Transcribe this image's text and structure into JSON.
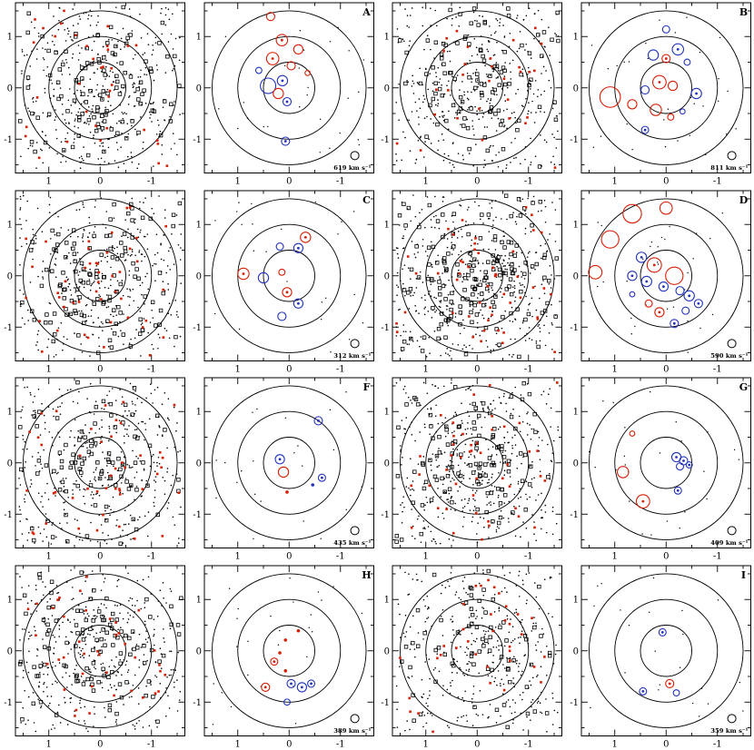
{
  "figure": {
    "description": "4x4 grid of galaxy cluster sky maps: dense photometric scatter panels paired with velocity-circle panels labeled A-I",
    "background": "#ffffff",
    "colors": {
      "red": "#d81e05",
      "blue": "#2233bb",
      "black": "#000000"
    }
  },
  "chart_data": {
    "type": "scatter",
    "grid": {
      "rows": 4,
      "cols": 4
    },
    "axis": {
      "range": 1.65,
      "x_reversed": true,
      "major_ticks": [
        1,
        0,
        -1
      ],
      "minor_ticks": [
        1.5,
        0.5,
        -0.5,
        -1.5
      ],
      "tick_labels": [
        "1",
        "0",
        "-1"
      ],
      "circle_radii": [
        0.5,
        1.0,
        1.5
      ]
    },
    "panels": [
      {
        "kind": "field",
        "seed": 101,
        "n_dots": 400,
        "n_squares": 110,
        "n_red": 35
      },
      {
        "kind": "velocity",
        "label": "A",
        "scale_label": "619 km s⁻¹",
        "seed": 201,
        "n_dots": 26,
        "markers": [
          [
            0.36,
            1.39,
            0.08,
            "R",
            0
          ],
          [
            0.14,
            0.93,
            0.11,
            "R",
            1
          ],
          [
            -0.18,
            0.75,
            0.09,
            "R",
            0
          ],
          [
            0.32,
            0.57,
            0.12,
            "R",
            1
          ],
          [
            -0.04,
            0.43,
            0.08,
            "R",
            0
          ],
          [
            0.59,
            0.34,
            0.06,
            "B",
            0
          ],
          [
            0.41,
            0.04,
            0.15,
            "B",
            0
          ],
          [
            0.13,
            0.14,
            0.1,
            "B",
            1
          ],
          [
            0.21,
            -0.11,
            0.1,
            "R",
            0
          ],
          [
            0.04,
            -0.27,
            0.08,
            "B",
            1
          ],
          [
            -0.36,
            0.29,
            0.05,
            "R",
            0
          ],
          [
            0.07,
            -1.04,
            0.08,
            "B",
            1
          ]
        ]
      },
      {
        "kind": "field",
        "seed": 102,
        "n_dots": 380,
        "n_squares": 100,
        "n_red": 30
      },
      {
        "kind": "velocity",
        "label": "B",
        "scale_label": "811 km s⁻¹",
        "seed": 202,
        "n_dots": 30,
        "markers": [
          [
            0.0,
            1.14,
            0.07,
            "B",
            0
          ],
          [
            -0.23,
            0.75,
            0.11,
            "B",
            1
          ],
          [
            0.25,
            0.64,
            0.1,
            "B",
            0
          ],
          [
            0.0,
            0.57,
            0.08,
            "R",
            1
          ],
          [
            -0.41,
            0.5,
            0.06,
            "B",
            0
          ],
          [
            0.13,
            0.11,
            0.13,
            "R",
            1
          ],
          [
            -0.13,
            0.04,
            0.09,
            "R",
            0
          ],
          [
            0.41,
            -0.04,
            0.08,
            "B",
            0
          ],
          [
            1.09,
            -0.18,
            0.2,
            "R",
            0
          ],
          [
            0.66,
            -0.32,
            0.09,
            "R",
            0
          ],
          [
            -0.59,
            -0.11,
            0.1,
            "B",
            1
          ],
          [
            0.2,
            -0.43,
            0.11,
            "R",
            0
          ],
          [
            -0.09,
            -0.57,
            0.06,
            "R",
            0
          ],
          [
            -0.32,
            -0.46,
            0.05,
            "B",
            0
          ],
          [
            0.41,
            -0.82,
            0.07,
            "B",
            1
          ]
        ]
      },
      {
        "kind": "field",
        "seed": 103,
        "n_dots": 350,
        "n_squares": 120,
        "n_red": 45
      },
      {
        "kind": "velocity",
        "label": "C",
        "scale_label": "312 km s⁻¹",
        "seed": 203,
        "n_dots": 24,
        "markers": [
          [
            -0.32,
            0.75,
            0.1,
            "R",
            1
          ],
          [
            -0.18,
            0.54,
            0.09,
            "B",
            1
          ],
          [
            0.18,
            0.57,
            0.07,
            "B",
            0
          ],
          [
            0.89,
            0.04,
            0.11,
            "R",
            1
          ],
          [
            0.5,
            -0.04,
            0.1,
            "B",
            0
          ],
          [
            0.14,
            0.07,
            0.06,
            "R",
            0
          ],
          [
            0.04,
            -0.32,
            0.09,
            "R",
            1
          ],
          [
            -0.18,
            -0.54,
            0.09,
            "B",
            1
          ],
          [
            0.14,
            -0.79,
            0.08,
            "B",
            0
          ]
        ]
      },
      {
        "kind": "field",
        "seed": 104,
        "n_dots": 460,
        "n_squares": 160,
        "n_red": 50
      },
      {
        "kind": "velocity",
        "label": "D",
        "scale_label": "590 km s⁻¹",
        "seed": 204,
        "n_dots": 30,
        "markers": [
          [
            0.66,
            1.21,
            0.18,
            "R",
            0
          ],
          [
            1.09,
            0.71,
            0.17,
            "R",
            0
          ],
          [
            0.0,
            1.32,
            0.12,
            "R",
            0
          ],
          [
            1.38,
            0.07,
            0.13,
            "R",
            0
          ],
          [
            0.48,
            0.36,
            0.1,
            "B",
            1
          ],
          [
            0.23,
            0.21,
            0.14,
            "R",
            1
          ],
          [
            0.66,
            0.0,
            0.09,
            "B",
            1
          ],
          [
            0.38,
            -0.11,
            0.1,
            "B",
            1
          ],
          [
            -0.16,
            0.0,
            0.17,
            "R",
            0
          ],
          [
            0.05,
            -0.21,
            0.09,
            "B",
            1
          ],
          [
            -0.27,
            -0.29,
            0.08,
            "B",
            0
          ],
          [
            -0.45,
            -0.39,
            0.1,
            "B",
            1
          ],
          [
            -0.63,
            -0.54,
            0.08,
            "B",
            1
          ],
          [
            -0.38,
            -0.68,
            0.07,
            "B",
            0
          ],
          [
            0.13,
            -0.71,
            0.09,
            "R",
            1
          ],
          [
            -0.16,
            -0.93,
            0.08,
            "B",
            1
          ],
          [
            0.34,
            -0.54,
            0.07,
            "R",
            0
          ],
          [
            0.66,
            -0.36,
            0.05,
            "B",
            0
          ]
        ]
      },
      {
        "kind": "field",
        "seed": 105,
        "n_dots": 400,
        "n_squares": 90,
        "n_red": 45
      },
      {
        "kind": "velocity",
        "label": "F",
        "scale_label": "435 km s⁻¹",
        "seed": 205,
        "n_dots": 22,
        "markers": [
          [
            -0.57,
            0.82,
            0.08,
            "B",
            1
          ],
          [
            0.18,
            0.07,
            0.09,
            "B",
            1
          ],
          [
            0.11,
            -0.18,
            0.1,
            "R",
            0
          ],
          [
            -0.64,
            -0.29,
            0.07,
            "B",
            1
          ],
          [
            -0.46,
            -0.43,
            0.04,
            "B",
            0
          ],
          [
            0.04,
            -0.57,
            0.04,
            "R",
            0
          ]
        ]
      },
      {
        "kind": "field",
        "seed": 106,
        "n_dots": 420,
        "n_squares": 110,
        "n_red": 45
      },
      {
        "kind": "velocity",
        "label": "G",
        "scale_label": "409 km s⁻¹",
        "seed": 206,
        "n_dots": 24,
        "markers": [
          [
            0.66,
            0.57,
            0.05,
            "R",
            0
          ],
          [
            0.84,
            -0.18,
            0.11,
            "R",
            0
          ],
          [
            -0.2,
            0.11,
            0.09,
            "B",
            1
          ],
          [
            -0.34,
            0.04,
            0.08,
            "B",
            1
          ],
          [
            -0.27,
            -0.07,
            0.07,
            "B",
            0
          ],
          [
            -0.45,
            -0.04,
            0.06,
            "B",
            1
          ],
          [
            -0.23,
            -0.54,
            0.07,
            "B",
            1
          ],
          [
            0.45,
            -0.75,
            0.13,
            "R",
            1
          ]
        ]
      },
      {
        "kind": "field",
        "seed": 107,
        "n_dots": 380,
        "n_squares": 110,
        "n_red": 40
      },
      {
        "kind": "velocity",
        "label": "H",
        "scale_label": "389 km s⁻¹",
        "seed": 207,
        "n_dots": 26,
        "markers": [
          [
            -0.18,
            0.39,
            0.03,
            "R",
            0
          ],
          [
            0.07,
            0.21,
            0.03,
            "R",
            0
          ],
          [
            0.18,
            -0.04,
            0.03,
            "R",
            0
          ],
          [
            0.29,
            -0.21,
            0.07,
            "R",
            1
          ],
          [
            0.07,
            -0.39,
            0.03,
            "R",
            0
          ],
          [
            -0.04,
            -0.64,
            0.08,
            "B",
            1
          ],
          [
            -0.25,
            -0.71,
            0.09,
            "B",
            1
          ],
          [
            -0.43,
            -0.64,
            0.07,
            "B",
            1
          ],
          [
            0.46,
            -0.71,
            0.08,
            "R",
            1
          ],
          [
            0.04,
            -1.0,
            0.06,
            "B",
            0
          ]
        ]
      },
      {
        "kind": "field",
        "seed": 108,
        "n_dots": 350,
        "n_squares": 70,
        "n_red": 35
      },
      {
        "kind": "velocity",
        "label": "I",
        "scale_label": "359 km s⁻¹",
        "seed": 208,
        "n_dots": 22,
        "markers": [
          [
            0.07,
            0.36,
            0.07,
            "B",
            1
          ],
          [
            -0.07,
            -0.64,
            0.08,
            "R",
            1
          ],
          [
            0.45,
            -0.79,
            0.07,
            "B",
            1
          ],
          [
            -0.2,
            -0.82,
            0.06,
            "B",
            0
          ]
        ]
      }
    ],
    "scale_marker": {
      "x": -1.28,
      "y": -1.32,
      "r": 0.08
    }
  }
}
